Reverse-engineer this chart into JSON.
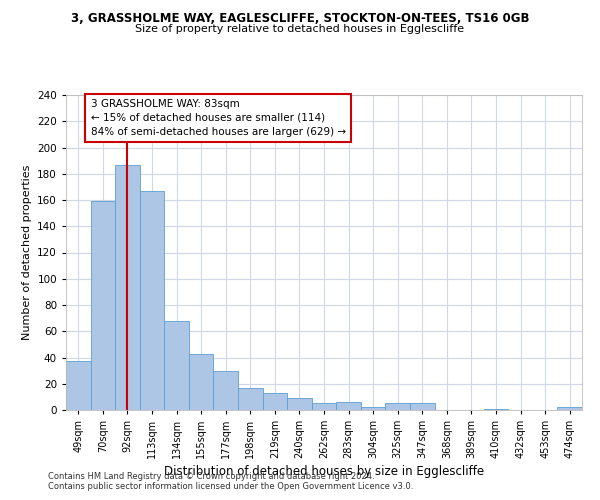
{
  "title1": "3, GRASSHOLME WAY, EAGLESCLIFFE, STOCKTON-ON-TEES, TS16 0GB",
  "title2": "Size of property relative to detached houses in Egglescliffe",
  "xlabel": "Distribution of detached houses by size in Egglescliffe",
  "ylabel": "Number of detached properties",
  "categories": [
    "49sqm",
    "70sqm",
    "92sqm",
    "113sqm",
    "134sqm",
    "155sqm",
    "177sqm",
    "198sqm",
    "219sqm",
    "240sqm",
    "262sqm",
    "283sqm",
    "304sqm",
    "325sqm",
    "347sqm",
    "368sqm",
    "389sqm",
    "410sqm",
    "432sqm",
    "453sqm",
    "474sqm"
  ],
  "values": [
    37,
    159,
    187,
    167,
    68,
    43,
    30,
    17,
    13,
    9,
    5,
    6,
    2,
    5,
    5,
    0,
    0,
    1,
    0,
    0,
    2
  ],
  "bar_color": "#adc6e5",
  "bar_edge_color": "#5a9fd4",
  "reference_line_x": 2,
  "reference_line_color": "#cc0000",
  "ylim": [
    0,
    240
  ],
  "yticks": [
    0,
    20,
    40,
    60,
    80,
    100,
    120,
    140,
    160,
    180,
    200,
    220,
    240
  ],
  "annotation_text": "3 GRASSHOLME WAY: 83sqm\n← 15% of detached houses are smaller (114)\n84% of semi-detached houses are larger (629) →",
  "annotation_box_color": "#ffffff",
  "annotation_box_edge": "#cc0000",
  "footer_line1": "Contains HM Land Registry data © Crown copyright and database right 2024.",
  "footer_line2": "Contains public sector information licensed under the Open Government Licence v3.0.",
  "bg_color": "#ffffff",
  "grid_color": "#d0d8e8",
  "title1_fontsize": 8.5,
  "title2_fontsize": 8.0,
  "ylabel_fontsize": 8.0,
  "xlabel_fontsize": 8.5,
  "xtick_fontsize": 7.0,
  "ytick_fontsize": 7.5,
  "ann_fontsize": 7.5,
  "footer_fontsize": 6.0
}
